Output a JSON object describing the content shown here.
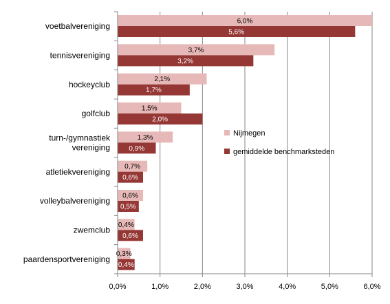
{
  "chart_data": {
    "type": "bar",
    "orientation": "horizontal",
    "categories": [
      [
        "voetbalvereniging"
      ],
      [
        "tennisvereniging"
      ],
      [
        "hockeyclub"
      ],
      [
        "golfclub"
      ],
      [
        "turn-/gymnastiek",
        "vereniging"
      ],
      [
        "atletiekvereniging"
      ],
      [
        "volleybalvereniging"
      ],
      [
        "zwemclub"
      ],
      [
        "paardensportvereniging"
      ]
    ],
    "series": [
      {
        "name": "Nijmegen",
        "color": "#E6B9B8",
        "label_color": "#000000",
        "values": [
          6.0,
          3.7,
          2.1,
          1.5,
          1.3,
          0.7,
          0.6,
          0.4,
          0.3
        ],
        "labels": [
          "6,0%",
          "3,7%",
          "2,1%",
          "1,5%",
          "1,3%",
          "0,7%",
          "0,6%",
          "0,4%",
          "0,3%"
        ]
      },
      {
        "name": "gemiddelde benchmarksteden",
        "color": "#953735",
        "label_color": "#ffffff",
        "values": [
          5.6,
          3.2,
          1.7,
          2.0,
          0.9,
          0.6,
          0.5,
          0.6,
          0.4
        ],
        "labels": [
          "5,6%",
          "3,2%",
          "1,7%",
          "2,0%",
          "0,9%",
          "0,6%",
          "0,5%",
          "0,6%",
          "0,4%"
        ]
      }
    ],
    "xlim": [
      0,
      6
    ],
    "xticks": [
      0,
      1,
      2,
      3,
      4,
      5,
      6
    ],
    "xtick_labels": [
      "0,0%",
      "1,0%",
      "2,0%",
      "3,0%",
      "4,0%",
      "5,0%",
      "6,0%"
    ],
    "grid": "vertical",
    "legend_position": "right-middle"
  }
}
